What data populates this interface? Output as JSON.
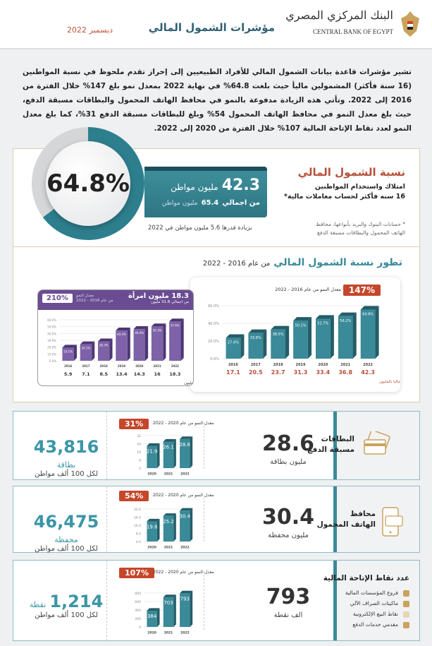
{
  "header": {
    "logo_ar": "البنك المركزي المصري",
    "logo_en": "CENTRAL BANK OF EGYPT",
    "title": "مؤشرات الشمول المالي",
    "date": "ديسمبر 2022"
  },
  "intro": "تشير مؤشرات قاعدة بيانات الشمول المالي للأفراد الطبيعيين إلى إحراز تقدم ملحوظ في نسبة المواطنين (16 سنة فأكثر) المشمولين ماليأ حيث بلغت 64.8% في نهاية 2022 بمعدل نمو بلغ 147% خلال الفترة من 2016 إلى 2022. وتأتي هذه الزيادة مدفوعة بالنمو في محافظ الهاتف المحمول والبطاقات مسبقة الدفع، حيث بلغ معدل النمو في محافظ الهاتف المحمول 54% وبلغ للبطاقات مسبقة الدفع 31%، كما بلغ معدل النمو لعدد نقاط الإتاحة المالية 107% خلال الفترة من 2020 إلى 2022.",
  "inclusion": {
    "percent": "64.8%",
    "percent_value": 64.8,
    "citizens": "42.3",
    "citizens_unit": "مليون مواطن",
    "of_total_label": "من اجمالي",
    "total": "65.4",
    "total_unit": "مليون مواطن",
    "increase": "بزيادة قدرها 5.6 مليون مواطن في 2022",
    "title": "نسبة الشمول المالي",
    "subtitle_1": "امتلاك واستخدام المواطنين",
    "subtitle_2": "16 سنه فأكثر لحساب معاملات مالية*",
    "note_1": "* حسابات البنوك والبريد بأنواعها، محافظ",
    "note_2": "الهاتف المحمول والبطاقات مسبقة الدفع"
  },
  "evolution": {
    "title": "تطور نسبة الشمول المالي",
    "title_suffix": "من عام 2016 - 2022"
  },
  "colors": {
    "teal": "#3a8a99",
    "purple": "#6a4c93",
    "red": "#c5472b"
  },
  "chart_data": [
    {
      "type": "bar",
      "title": "تطور نسبة الشمول المالي",
      "growth_badge": "147%",
      "growth_label": "معدل النمو من عام 2016 - 2022",
      "categories": [
        "2016",
        "2017",
        "2018",
        "2019",
        "2020",
        "2021",
        "2022"
      ],
      "values": [
        27.4,
        33.8,
        38.5,
        50.1,
        52.7,
        56.2,
        64.8
      ],
      "value_labels": [
        "27.4%",
        "33.8%",
        "38.5%",
        "50.1%",
        "52.7%",
        "56.2%",
        "64.8%"
      ],
      "yticks": [
        "0.0%",
        "20.0%",
        "40.0%",
        "60.0%"
      ],
      "ylim": [
        0,
        70
      ],
      "secondary_values": [
        "17.1",
        "20.5",
        "23.7",
        "31.3",
        "33.4",
        "36.8",
        "42.3"
      ],
      "secondary_label": "عدد المواطنين المشمولين ماليا بالمليون"
    },
    {
      "type": "bar",
      "title": "18.3 مليون امرأة",
      "subtitle": "من اجمالي 31.8 مليون",
      "growth_badge": "210%",
      "growth_label_1": "معدل النمو",
      "growth_label_2": "من عام 2016 - 2022",
      "categories": [
        "2016",
        "2017",
        "2018",
        "2019",
        "2020",
        "2021",
        "2022"
      ],
      "values": [
        19.1,
        24.1,
        28.3,
        44.4,
        46.4,
        50.3,
        57.6
      ],
      "value_labels": [
        "19.1%",
        "24.1%",
        "28.3%",
        "44.4%",
        "46.4%",
        "50.3%",
        "57.6%"
      ],
      "yticks": [
        "0.0%",
        "10.0%",
        "20.0%",
        "30.0%",
        "40.0%",
        "50.0%",
        "60.0%"
      ],
      "ylim": [
        0,
        60
      ],
      "secondary_values": [
        "5.9",
        "7.1",
        "8.5",
        "13.4",
        "14.3",
        "16",
        "18.3"
      ],
      "secondary_label": "عدد السيدات المشمولات ماليا بالمليون"
    },
    {
      "type": "bar",
      "title": "البطاقات مسبقة الدفع",
      "growth_badge": "31%",
      "growth_label": "معدل النمو من عام 2020 - 2022",
      "categories": [
        "2020",
        "2021",
        "2022"
      ],
      "values": [
        21.9,
        26.1,
        28.6
      ],
      "value_labels": [
        "21.9",
        "26.1",
        "28.6"
      ],
      "yticks": [
        "0",
        "8",
        "16",
        "24",
        "32"
      ],
      "ylim": [
        0,
        32
      ]
    },
    {
      "type": "bar",
      "title": "محافظ الهاتف المحمول",
      "growth_badge": "54%",
      "growth_label": "معدل النمو من عام 2020 - 2022",
      "categories": [
        "2020",
        "2021",
        "2022"
      ],
      "values": [
        19.8,
        25.2,
        30.4
      ],
      "value_labels": [
        "19.8",
        "25.2",
        "30.4"
      ],
      "yticks": [
        "0.0",
        "8.0",
        "16.0",
        "24.0",
        "32.0"
      ],
      "ylim": [
        0,
        32
      ]
    },
    {
      "type": "bar",
      "title": "عدد نقاط الإتاحة المالية",
      "growth_badge": "107%",
      "growth_label": "معدل النمو من عام 2020 - 2022",
      "categories": [
        "2020",
        "2021",
        "2022"
      ],
      "values": [
        384,
        703,
        793
      ],
      "value_labels": [
        "384",
        "703",
        "793"
      ],
      "yticks": [
        "0",
        "200",
        "400",
        "600",
        "800"
      ],
      "ylim": [
        0,
        800
      ]
    }
  ],
  "cards": [
    {
      "title_1": "البطاقات",
      "title_2": "مسبقة الدفع",
      "big": "28.6",
      "big_unit": "مليون بطاقة",
      "per": "43,816",
      "per_unit": "بطاقة",
      "per_sub": "لكل 100 ألف مواطن"
    },
    {
      "title_1": "محافظ",
      "title_2": "الهاتف المحمول",
      "big": "30.4",
      "big_unit": "مليون محفظة",
      "per": "46,475",
      "per_unit": "محفظة",
      "per_sub": "لكل 100 ألف مواطن"
    },
    {
      "title_1": "عدد نقاط الإتاحة المالية",
      "big": "793",
      "big_unit": "الف نقطة",
      "per": "1,214",
      "per_unit": "نقطة",
      "per_sub": "لكل 100 ألف مواطن",
      "items": [
        "فروع المؤسسات المالية",
        "ماكينات الصراف الآلي",
        "نقاط البيع الإلكترونية",
        "مقدمي خدمات الدفع"
      ]
    }
  ]
}
